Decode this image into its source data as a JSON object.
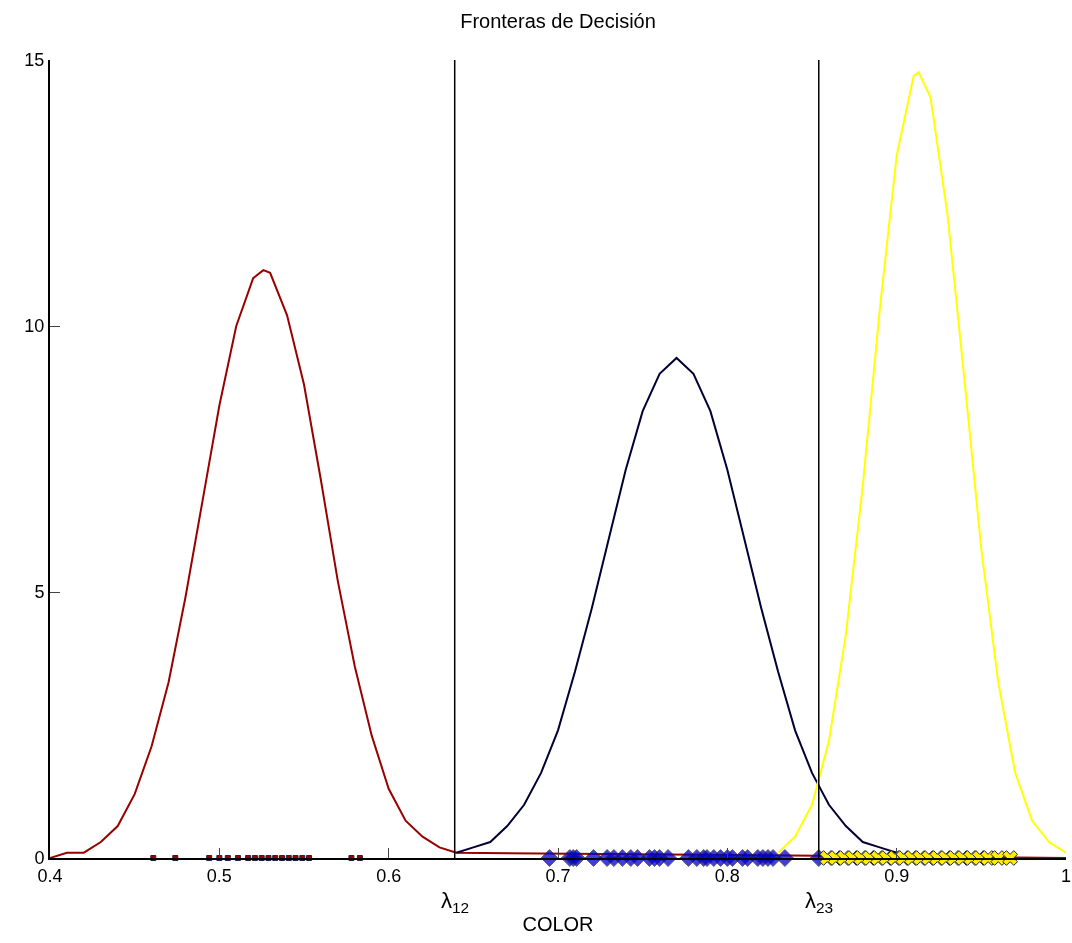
{
  "chart_data": {
    "type": "line",
    "title": "Fronteras de Decisión",
    "xlabel": "COLOR",
    "xlim": [
      0.4,
      1
    ],
    "xticks": [
      0.4,
      0.5,
      0.6,
      0.7,
      0.8,
      0.9,
      1
    ],
    "ylim": [
      0,
      15
    ],
    "yticks": [
      0,
      5,
      10,
      15
    ],
    "grid": false,
    "series": [
      {
        "color": "#990000",
        "marker": "none",
        "x": [
          0.4,
          0.41,
          0.42,
          0.43,
          0.44,
          0.45,
          0.46,
          0.47,
          0.48,
          0.49,
          0.5,
          0.51,
          0.52,
          0.526,
          0.53,
          0.54,
          0.55,
          0.56,
          0.57,
          0.58,
          0.59,
          0.6,
          0.61,
          0.62,
          0.63,
          0.64,
          1
        ],
        "values": [
          0,
          0.1,
          0.1,
          0.3,
          0.6,
          1.2,
          2.1,
          3.3,
          4.9,
          6.7,
          8.5,
          10,
          10.9,
          11.05,
          11,
          10.2,
          8.9,
          7.1,
          5.2,
          3.6,
          2.3,
          1.3,
          0.7,
          0.4,
          0.2,
          0.1,
          0
        ]
      },
      {
        "color": "#000033",
        "marker": "none",
        "x": [
          0.64,
          0.65,
          0.66,
          0.67,
          0.68,
          0.69,
          0.7,
          0.71,
          0.72,
          0.73,
          0.74,
          0.75,
          0.76,
          0.77,
          0.78,
          0.79,
          0.8,
          0.81,
          0.82,
          0.83,
          0.84,
          0.85,
          0.86,
          0.87,
          0.88,
          0.89,
          0.9,
          0.91
        ],
        "values": [
          0.1,
          0.2,
          0.3,
          0.6,
          1,
          1.6,
          2.4,
          3.5,
          4.7,
          6,
          7.3,
          8.4,
          9.1,
          9.4,
          9.1,
          8.4,
          7.3,
          6,
          4.7,
          3.5,
          2.4,
          1.6,
          1,
          0.6,
          0.3,
          0.2,
          0.1,
          0
        ]
      },
      {
        "color": "#ffff00",
        "marker": "none",
        "x": [
          0.83,
          0.84,
          0.85,
          0.86,
          0.87,
          0.88,
          0.89,
          0.9,
          0.91,
          0.913,
          0.92,
          0.93,
          0.94,
          0.95,
          0.96,
          0.97,
          0.98,
          0.99,
          1
        ],
        "values": [
          0.1,
          0.4,
          1,
          2.2,
          4.2,
          7,
          10.3,
          13.2,
          14.7,
          14.77,
          14.3,
          12.1,
          9,
          5.8,
          3.3,
          1.6,
          0.7,
          0.3,
          0.1
        ]
      },
      {
        "type": "scatter",
        "color": "#990000",
        "marker": "square",
        "x": [
          0.461,
          0.474,
          0.494,
          0.5,
          0.505,
          0.511,
          0.517,
          0.521,
          0.525,
          0.529,
          0.533,
          0.537,
          0.541,
          0.545,
          0.549,
          0.553,
          0.578,
          0.583
        ],
        "values": [
          0,
          0,
          0,
          0,
          0,
          0,
          0,
          0,
          0,
          0,
          0,
          0,
          0,
          0,
          0,
          0,
          0,
          0
        ]
      },
      {
        "type": "scatter",
        "color": "#0000cc",
        "marker": "diamond",
        "x": [
          0.695,
          0.707,
          0.709,
          0.711,
          0.721,
          0.729,
          0.733,
          0.738,
          0.743,
          0.747,
          0.754,
          0.757,
          0.76,
          0.765,
          0.777,
          0.782,
          0.786,
          0.788,
          0.792,
          0.796,
          0.8,
          0.803,
          0.809,
          0.812,
          0.818,
          0.821,
          0.824,
          0.827,
          0.834,
          0.854
        ],
        "values": [
          0,
          0,
          0,
          0,
          0,
          0,
          0,
          0,
          0,
          0,
          0,
          0,
          0,
          0,
          0,
          0,
          0,
          0,
          0,
          0,
          0,
          0,
          0,
          0,
          0,
          0,
          0,
          0,
          0,
          0
        ]
      },
      {
        "type": "scatter",
        "color": "#ffee00",
        "marker": "cross",
        "x": [
          0.859,
          0.864,
          0.869,
          0.874,
          0.879,
          0.884,
          0.889,
          0.894,
          0.899,
          0.904,
          0.909,
          0.914,
          0.919,
          0.924,
          0.929,
          0.934,
          0.939,
          0.944,
          0.949,
          0.954,
          0.96,
          0.967
        ],
        "values": [
          0,
          0,
          0,
          0,
          0,
          0,
          0,
          0,
          0,
          0,
          0,
          0,
          0,
          0,
          0,
          0,
          0,
          0,
          0,
          0,
          0,
          0
        ]
      }
    ],
    "ref_lines": [
      {
        "axis": "x",
        "value": 0.639,
        "label": "λ$_{12}$",
        "color": "#000000"
      },
      {
        "axis": "x",
        "value": 0.854,
        "label": "λ$_{23}$",
        "color": "#000000"
      }
    ]
  }
}
